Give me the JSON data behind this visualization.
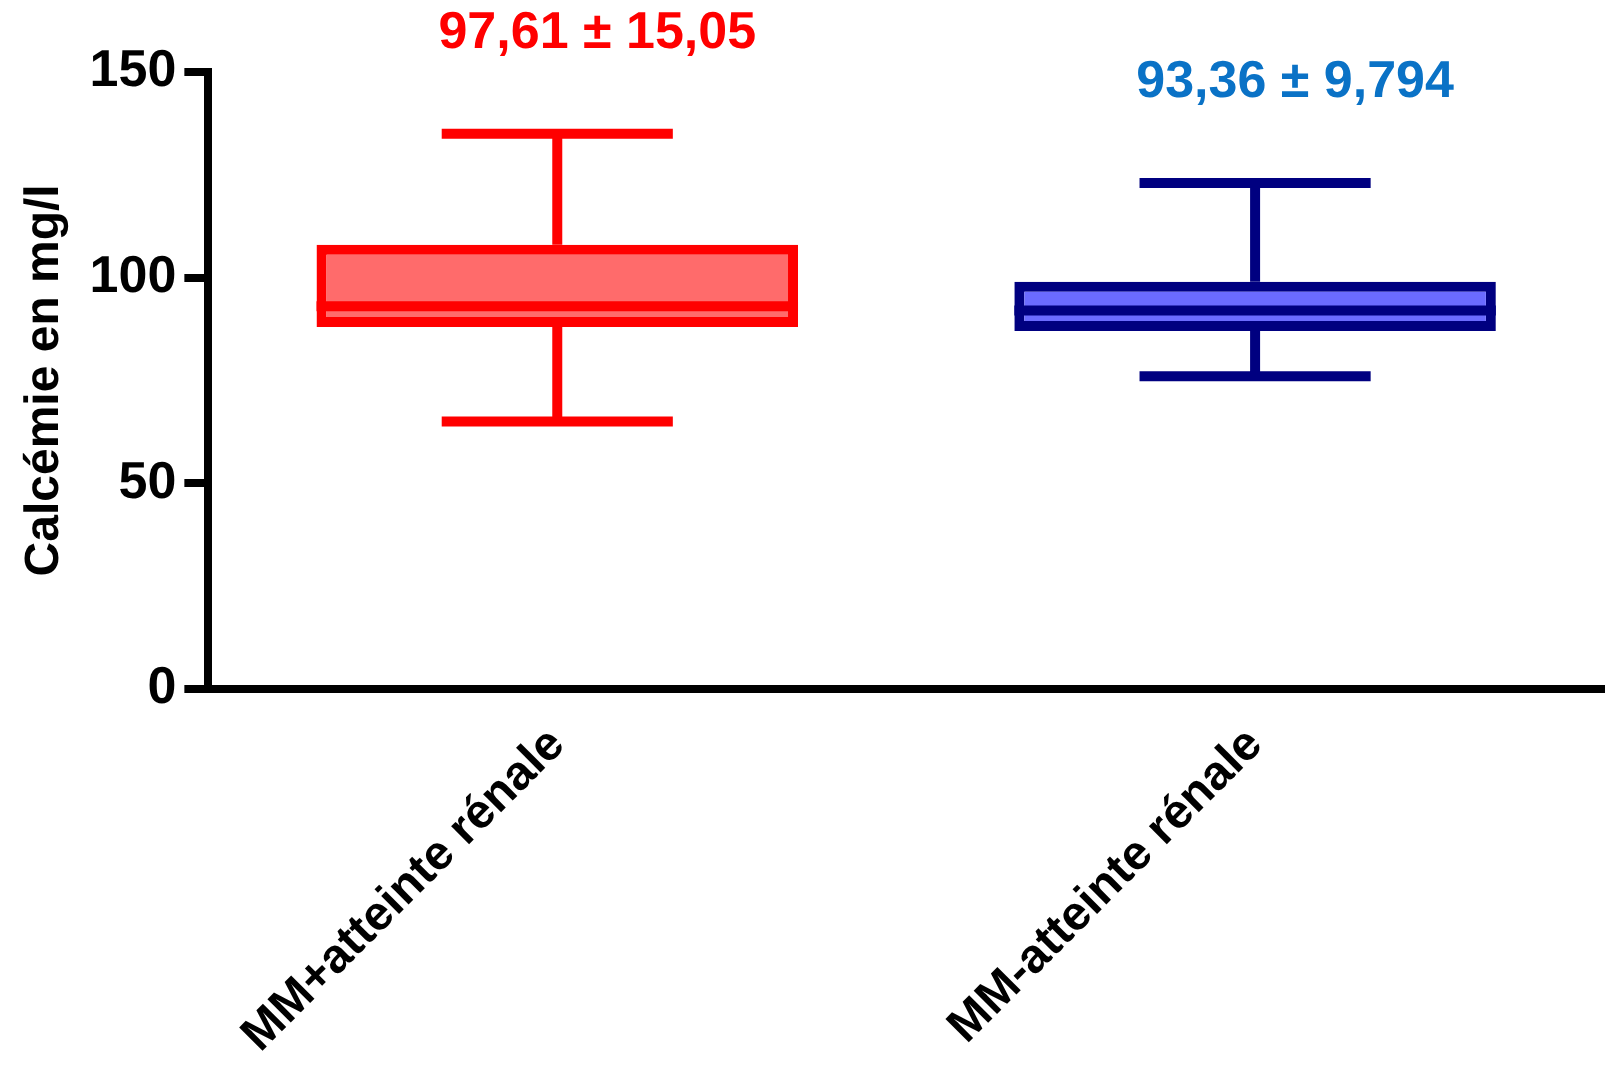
{
  "chart_data": {
    "type": "box",
    "ylabel": "Calcémie en mg/l",
    "categories": [
      "MM+atteinte rénale",
      "MM-atteinte rénale"
    ],
    "series": [
      {
        "color": "#ff0000",
        "boxes": [
          {
            "low": 65,
            "q1": 88,
            "median": 93,
            "q3": 108,
            "high": 135
          },
          null
        ]
      },
      {
        "color": "#000080",
        "boxes": [
          null,
          {
            "low": 76,
            "q1": 87,
            "median": 92,
            "q3": 99,
            "high": 123
          }
        ]
      }
    ],
    "ylim": [
      0,
      150
    ],
    "yticks": [
      0,
      50,
      100,
      150
    ],
    "grid": false,
    "legend": false,
    "annotations": [
      "97,61 ± 15,05",
      "93,36 ± 9,794"
    ]
  }
}
